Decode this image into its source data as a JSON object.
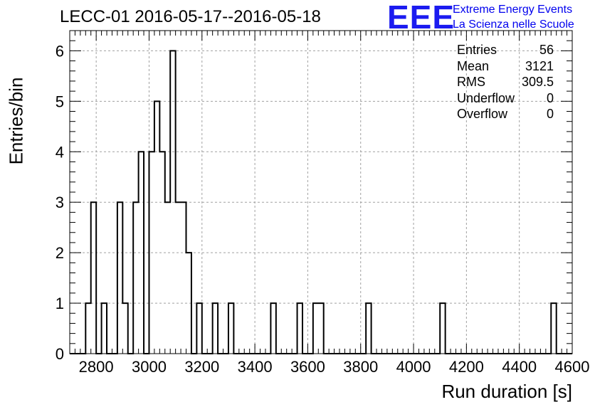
{
  "title": "LECC-01 2016-05-17--2016-05-18",
  "logo": {
    "mark": "EEE",
    "line1": "Extreme Energy Events",
    "line2": "La Scienza nelle Scuole"
  },
  "stats": [
    {
      "label": "Entries",
      "value": "56"
    },
    {
      "label": "Mean",
      "value": "3121"
    },
    {
      "label": "RMS",
      "value": "309.5"
    },
    {
      "label": "Underflow",
      "value": "0"
    },
    {
      "label": "Overflow",
      "value": "0"
    }
  ],
  "chart_data": {
    "type": "bar",
    "histogram": true,
    "title": "LECC-01 2016-05-17--2016-05-18",
    "xlabel": "Run duration [s]",
    "ylabel": "Entries/bin",
    "xlim": [
      2700,
      4600
    ],
    "ylim": [
      0,
      6.4
    ],
    "bin_width": 20,
    "xticks": [
      2800,
      3000,
      3200,
      3400,
      3600,
      3800,
      4000,
      4200,
      4400,
      4600
    ],
    "yticks": [
      0,
      1,
      2,
      3,
      4,
      5,
      6
    ],
    "grid": true,
    "bins": [
      {
        "x": 2760,
        "count": 1
      },
      {
        "x": 2780,
        "count": 3
      },
      {
        "x": 2820,
        "count": 1
      },
      {
        "x": 2880,
        "count": 3
      },
      {
        "x": 2900,
        "count": 1
      },
      {
        "x": 2940,
        "count": 3
      },
      {
        "x": 2960,
        "count": 4
      },
      {
        "x": 3000,
        "count": 4
      },
      {
        "x": 3020,
        "count": 5
      },
      {
        "x": 3040,
        "count": 4
      },
      {
        "x": 3060,
        "count": 3
      },
      {
        "x": 3080,
        "count": 6
      },
      {
        "x": 3100,
        "count": 3
      },
      {
        "x": 3120,
        "count": 3
      },
      {
        "x": 3140,
        "count": 2
      },
      {
        "x": 3180,
        "count": 1
      },
      {
        "x": 3240,
        "count": 1
      },
      {
        "x": 3300,
        "count": 1
      },
      {
        "x": 3460,
        "count": 1
      },
      {
        "x": 3560,
        "count": 1
      },
      {
        "x": 3620,
        "count": 1
      },
      {
        "x": 3640,
        "count": 1
      },
      {
        "x": 3820,
        "count": 1
      },
      {
        "x": 4100,
        "count": 1
      },
      {
        "x": 4520,
        "count": 1
      }
    ]
  }
}
